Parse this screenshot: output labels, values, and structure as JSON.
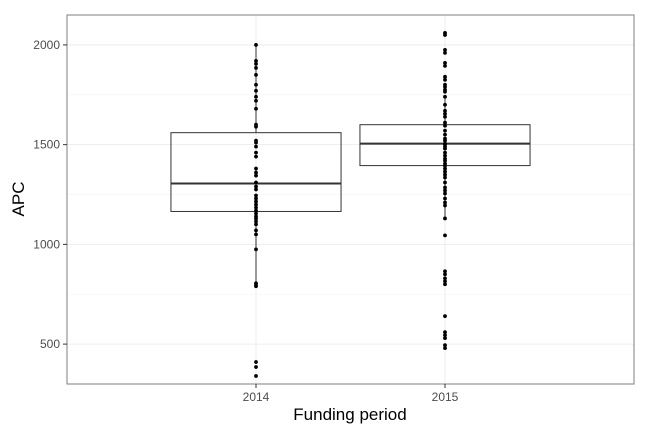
{
  "chart_data": {
    "type": "box",
    "xlabel": "Funding period",
    "ylabel": "APC",
    "categories": [
      "2014",
      "2015"
    ],
    "ylim": [
      300,
      2150
    ],
    "yticks": [
      500,
      1000,
      1500,
      2000
    ],
    "grid": true,
    "boxes": [
      {
        "category": "2014",
        "q1": 1165,
        "median": 1305,
        "q3": 1560,
        "whisker_low": 790,
        "whisker_high": 2000,
        "points": [
          2000,
          1920,
          1905,
          1885,
          1850,
          1800,
          1770,
          1740,
          1720,
          1680,
          1600,
          1590,
          1520,
          1510,
          1490,
          1460,
          1440,
          1380,
          1360,
          1345,
          1310,
          1290,
          1275,
          1245,
          1230,
          1215,
          1200,
          1185,
          1170,
          1155,
          1140,
          1130,
          1115,
          1100,
          1070,
          1050,
          975,
          805,
          795,
          790,
          410,
          385,
          340
        ]
      },
      {
        "category": "2015",
        "q1": 1395,
        "median": 1505,
        "q3": 1600,
        "whisker_low": 1130,
        "whisker_high": 1740,
        "points": [
          2060,
          2050,
          1975,
          1960,
          1910,
          1895,
          1840,
          1825,
          1800,
          1790,
          1775,
          1765,
          1740,
          1700,
          1670,
          1655,
          1640,
          1610,
          1595,
          1570,
          1550,
          1530,
          1520,
          1505,
          1500,
          1490,
          1480,
          1460,
          1445,
          1430,
          1420,
          1405,
          1395,
          1380,
          1365,
          1350,
          1335,
          1310,
          1285,
          1270,
          1255,
          1230,
          1210,
          1195,
          1130,
          1045,
          865,
          850,
          830,
          815,
          800,
          640,
          560,
          545,
          530,
          495,
          480
        ]
      }
    ]
  }
}
